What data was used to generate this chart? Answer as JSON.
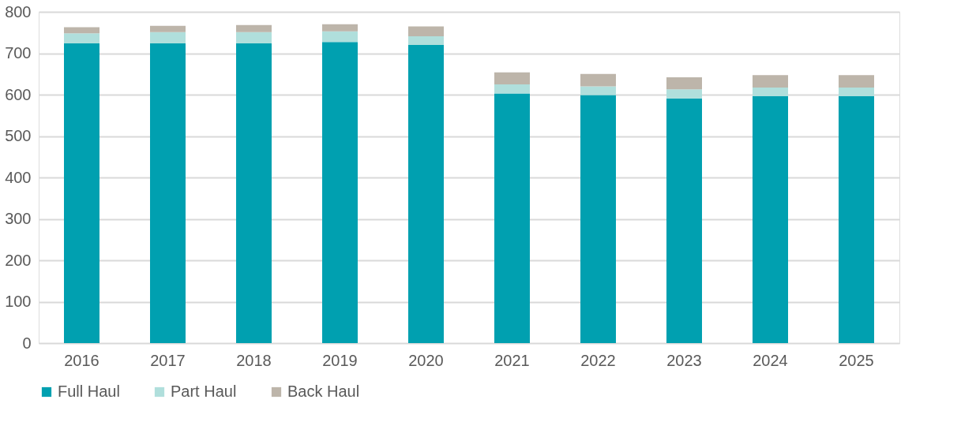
{
  "chart_data": {
    "type": "bar",
    "stacked": true,
    "categories": [
      "2016",
      "2017",
      "2018",
      "2019",
      "2020",
      "2021",
      "2022",
      "2023",
      "2024",
      "2025"
    ],
    "series": [
      {
        "name": "Full Haul",
        "color": "#00a0b0",
        "values": [
          724,
          724,
          724,
          727,
          720,
          603,
          599,
          591,
          596,
          596
        ]
      },
      {
        "name": "Part Haul",
        "color": "#b0dfdc",
        "values": [
          24,
          27,
          27,
          26,
          21,
          22,
          21,
          22,
          21,
          21
        ]
      },
      {
        "name": "Back Haul",
        "color": "#bdb5aa",
        "values": [
          15,
          15,
          17,
          17,
          24,
          29,
          30,
          29,
          30,
          30
        ]
      }
    ],
    "ylim": [
      0,
      800
    ],
    "yticks": [
      0,
      100,
      200,
      300,
      400,
      500,
      600,
      700,
      800
    ],
    "grid": "y",
    "legend": "bottom"
  }
}
